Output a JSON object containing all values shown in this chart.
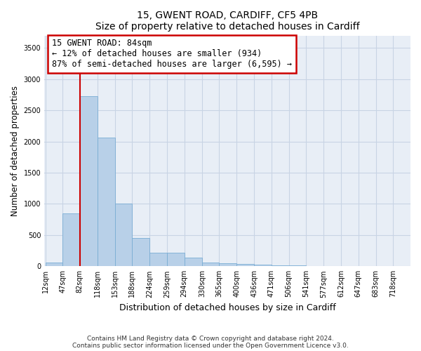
{
  "title_line1": "15, GWENT ROAD, CARDIFF, CF5 4PB",
  "title_line2": "Size of property relative to detached houses in Cardiff",
  "xlabel": "Distribution of detached houses by size in Cardiff",
  "ylabel": "Number of detached properties",
  "bar_color": "#b8d0e8",
  "bar_edge_color": "#7aadd4",
  "grid_color": "#c8d4e4",
  "bg_color": "#e8eef6",
  "annotation_line_color": "#cc0000",
  "annotation_box_color": "#cc0000",
  "annotation_text_line1": "15 GWENT ROAD: 84sqm",
  "annotation_text_line2": "← 12% of detached houses are smaller (934)",
  "annotation_text_line3": "87% of semi-detached houses are larger (6,595) →",
  "property_size_bin_index": 2,
  "bins": [
    12,
    47,
    82,
    118,
    153,
    188,
    224,
    259,
    294,
    330,
    365,
    400,
    436,
    471,
    506,
    541,
    577,
    612,
    647,
    683,
    718
  ],
  "values": [
    60,
    850,
    2730,
    2060,
    1000,
    450,
    215,
    215,
    135,
    60,
    50,
    40,
    30,
    10,
    10,
    0,
    0,
    0,
    0,
    0
  ],
  "ylim": [
    0,
    3700
  ],
  "yticks": [
    0,
    500,
    1000,
    1500,
    2000,
    2500,
    3000,
    3500
  ],
  "footer_line1": "Contains HM Land Registry data © Crown copyright and database right 2024.",
  "footer_line2": "Contains public sector information licensed under the Open Government Licence v3.0."
}
